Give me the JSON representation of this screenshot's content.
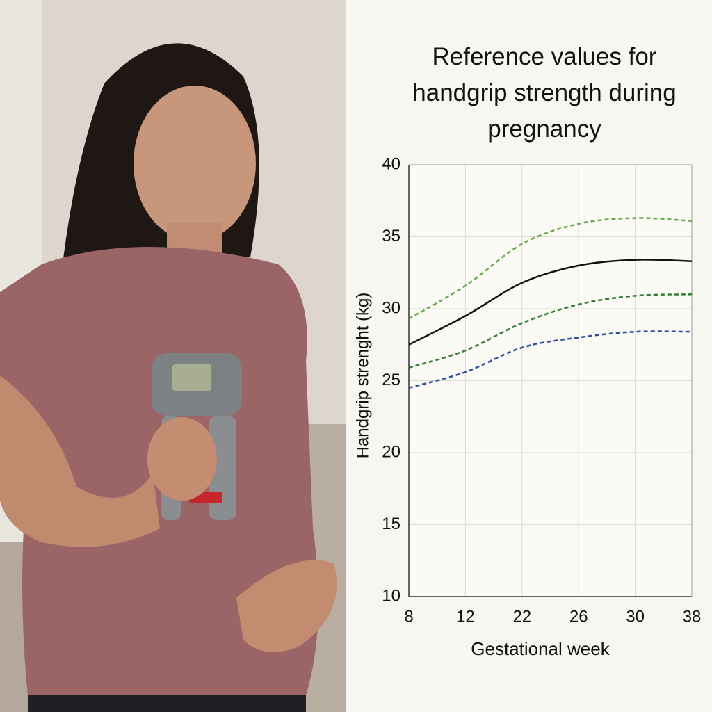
{
  "chart_data": {
    "type": "line",
    "title": "Reference values for handgrip strength during pregnancy",
    "x_label": "Gestational week",
    "y_label": "Handgrip strenght (kg)",
    "categories": [
      "8",
      "12",
      "22",
      "26",
      "30",
      "38"
    ],
    "ylim": [
      10,
      40
    ],
    "yticks": [
      10,
      15,
      20,
      25,
      30,
      35,
      40
    ],
    "grid": true,
    "series": [
      {
        "color": "#6aa84f",
        "dash": true,
        "values": [
          29.3,
          31.6,
          34.5,
          35.9,
          36.3,
          36.1
        ]
      },
      {
        "color": "#111111",
        "dash": false,
        "values": [
          27.5,
          29.5,
          31.8,
          33.0,
          33.4,
          33.3
        ]
      },
      {
        "color": "#2e7d32",
        "dash": true,
        "values": [
          25.9,
          27.1,
          29.0,
          30.3,
          30.9,
          31.0
        ]
      },
      {
        "color": "#2f4f9a",
        "dash": true,
        "values": [
          24.5,
          25.6,
          27.3,
          28.0,
          28.4,
          28.4
        ]
      }
    ]
  }
}
